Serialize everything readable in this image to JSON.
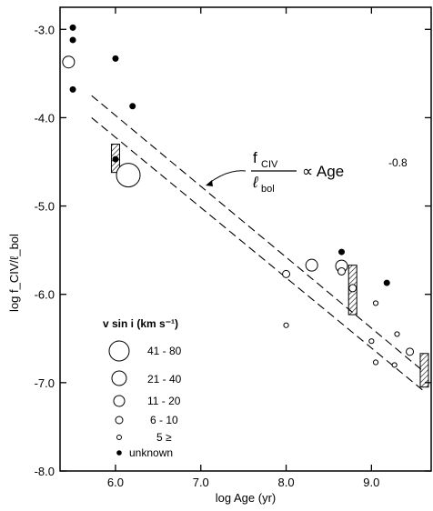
{
  "chart_data": {
    "type": "scatter",
    "xlabel": "log Age (yr)",
    "ylabel": "log f_CIV/ℓ_bol",
    "xlim": [
      5.35,
      9.7
    ],
    "ylim": [
      -8.0,
      -2.75
    ],
    "x_ticks": [
      6.0,
      7.0,
      8.0,
      9.0
    ],
    "x_tick_labels": [
      "6.0",
      "7.0",
      "8.0",
      "9.0"
    ],
    "y_ticks": [
      -3.0,
      -4.0,
      -5.0,
      -6.0,
      -7.0,
      -8.0
    ],
    "y_tick_labels": [
      "-3.0",
      "-4.0",
      "-5.0",
      "-6.0",
      "-7.0",
      "-8.0"
    ],
    "annotation": {
      "numerator": "f",
      "numerator_sub": "CIV",
      "denominator": "ℓ",
      "denominator_sub": "bol",
      "relation": "∝ Age",
      "exponent": "-0.8"
    },
    "fit_lines": [
      {
        "x": [
          5.72,
          9.62
        ],
        "y": [
          -3.75,
          -6.88
        ]
      },
      {
        "x": [
          5.72,
          9.62
        ],
        "y": [
          -4.0,
          -7.1
        ]
      }
    ],
    "legend": {
      "title": "v sin i  (km s⁻¹)",
      "entries": [
        {
          "label": "41 - 80",
          "class": "41-80"
        },
        {
          "label": "21 - 40",
          "class": "21-40"
        },
        {
          "label": "11 - 20",
          "class": "11-20"
        },
        {
          "label": "6 - 10",
          "class": "6-10"
        },
        {
          "label": "5 ≥",
          "class": "<=5"
        },
        {
          "label": "unknown",
          "class": "unknown"
        }
      ]
    },
    "points": [
      {
        "x": 5.5,
        "y": -2.98,
        "class": "unknown"
      },
      {
        "x": 5.5,
        "y": -3.12,
        "class": "unknown"
      },
      {
        "x": 5.5,
        "y": -3.68,
        "class": "unknown"
      },
      {
        "x": 6.0,
        "y": -3.33,
        "class": "unknown"
      },
      {
        "x": 6.2,
        "y": -3.87,
        "class": "unknown"
      },
      {
        "x": 6.0,
        "y": -4.47,
        "class": "unknown"
      },
      {
        "x": 8.65,
        "y": -5.52,
        "class": "unknown"
      },
      {
        "x": 9.18,
        "y": -5.87,
        "class": "unknown"
      },
      {
        "x": 5.45,
        "y": -3.37,
        "class": "11-20"
      },
      {
        "x": 6.15,
        "y": -4.65,
        "class": "41-80"
      },
      {
        "x": 8.3,
        "y": -5.67,
        "class": "11-20"
      },
      {
        "x": 8.65,
        "y": -5.68,
        "class": "11-20"
      },
      {
        "x": 8.65,
        "y": -5.74,
        "class": "6-10"
      },
      {
        "x": 8.78,
        "y": -5.93,
        "class": "6-10"
      },
      {
        "x": 8.0,
        "y": -5.77,
        "class": "6-10"
      },
      {
        "x": 9.45,
        "y": -6.65,
        "class": "6-10"
      },
      {
        "x": 8.0,
        "y": -6.35,
        "class": "<=5"
      },
      {
        "x": 9.05,
        "y": -6.1,
        "class": "<=5"
      },
      {
        "x": 9.0,
        "y": -6.53,
        "class": "<=5"
      },
      {
        "x": 9.05,
        "y": -6.77,
        "class": "<=5"
      },
      {
        "x": 9.3,
        "y": -6.45,
        "class": "<=5"
      },
      {
        "x": 9.27,
        "y": -6.8,
        "class": "<=5"
      }
    ],
    "range_bars": [
      {
        "x": 6.0,
        "y_top": -4.3,
        "y_bottom": -4.62
      },
      {
        "x": 8.78,
        "y_top": -5.67,
        "y_bottom": -6.23
      },
      {
        "x": 9.62,
        "y_top": -6.67,
        "y_bottom": -7.05
      }
    ],
    "grid": false,
    "legend_position": "bottom-left"
  }
}
